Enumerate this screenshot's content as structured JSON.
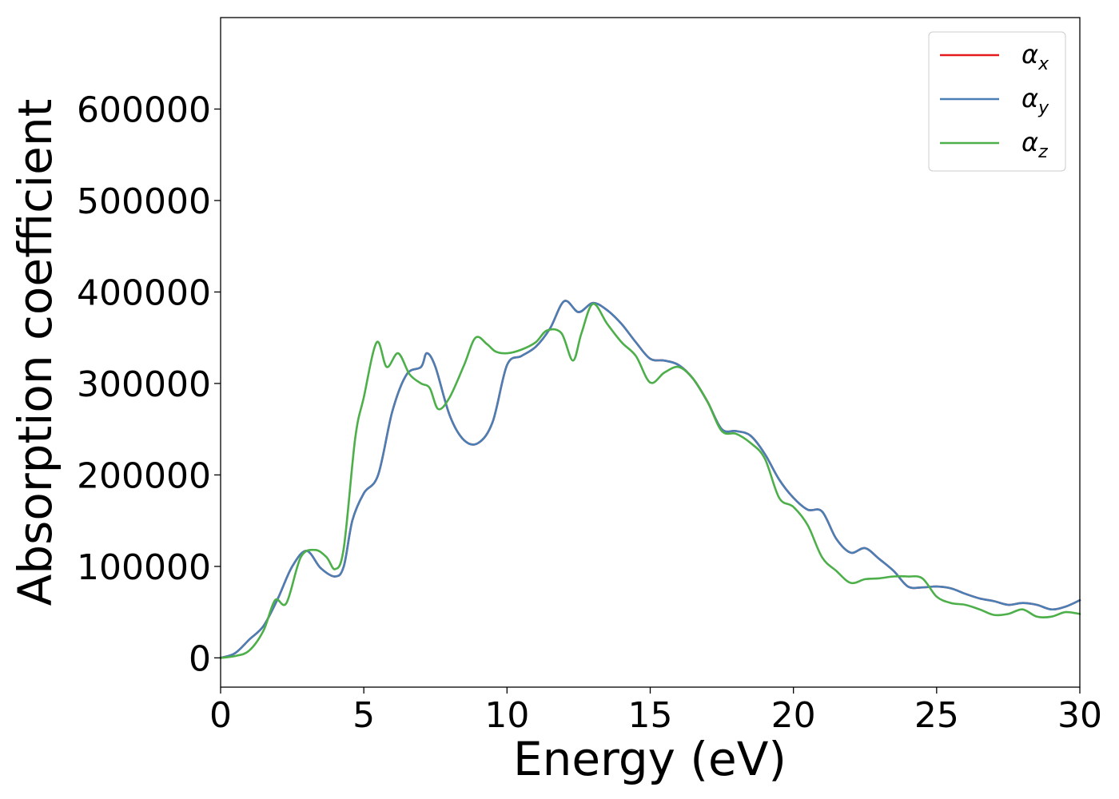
{
  "chart_data": {
    "type": "line",
    "title": "",
    "xlabel": "Energy (eV)",
    "ylabel": "Absorption coefficient",
    "xlim": [
      0,
      30
    ],
    "ylim": [
      -32000,
      700000
    ],
    "xticks": [
      0,
      5,
      10,
      15,
      20,
      25,
      30
    ],
    "yticks": [
      0,
      100000,
      200000,
      300000,
      400000,
      500000,
      600000
    ],
    "xtick_labels": [
      "0",
      "5",
      "10",
      "15",
      "20",
      "25",
      "30"
    ],
    "ytick_labels": [
      "0",
      "100000",
      "200000",
      "300000",
      "400000",
      "500000",
      "600000"
    ],
    "grid": false,
    "legend_position": "top-right",
    "series": [
      {
        "name": "αx",
        "symbol": "α",
        "subscript": "x",
        "color": "#e41a1c",
        "x": [
          0,
          0.5,
          1.0,
          1.5,
          2.0,
          2.5,
          3.0,
          3.5,
          4.0,
          4.3,
          4.6,
          5.0,
          5.5,
          6.0,
          6.5,
          7.0,
          7.2,
          7.5,
          8.0,
          8.5,
          9.0,
          9.5,
          10.0,
          10.5,
          11.0,
          11.5,
          12.0,
          12.5,
          13.0,
          13.5,
          14.0,
          14.5,
          15.0,
          15.5,
          16.0,
          16.5,
          17.0,
          17.5,
          18.0,
          18.5,
          19.0,
          19.5,
          20.0,
          20.5,
          21.0,
          21.5,
          22.0,
          22.5,
          23.0,
          23.5,
          24.0,
          24.5,
          25.0,
          25.5,
          26.0,
          26.5,
          27.0,
          27.5,
          28.0,
          28.5,
          29.0,
          29.5,
          30.0
        ],
        "y": [
          0,
          5000,
          20000,
          35000,
          65000,
          100000,
          117000,
          98000,
          89000,
          100000,
          150000,
          180000,
          200000,
          270000,
          310000,
          318000,
          333000,
          318000,
          265000,
          238000,
          235000,
          258000,
          320000,
          330000,
          340000,
          360000,
          390000,
          378000,
          388000,
          380000,
          365000,
          345000,
          327000,
          325000,
          320000,
          305000,
          280000,
          250000,
          248000,
          243000,
          223000,
          195000,
          175000,
          162000,
          160000,
          130000,
          115000,
          120000,
          108000,
          95000,
          78000,
          77000,
          78000,
          76000,
          70000,
          65000,
          62000,
          58000,
          60000,
          58000,
          53000,
          56000,
          63000
        ]
      },
      {
        "name": "αy",
        "symbol": "α",
        "subscript": "y",
        "color": "#4a7fb5",
        "x": [
          0,
          0.5,
          1.0,
          1.5,
          2.0,
          2.5,
          3.0,
          3.5,
          4.0,
          4.3,
          4.6,
          5.0,
          5.5,
          6.0,
          6.5,
          7.0,
          7.2,
          7.5,
          8.0,
          8.5,
          9.0,
          9.5,
          10.0,
          10.5,
          11.0,
          11.5,
          12.0,
          12.5,
          13.0,
          13.5,
          14.0,
          14.5,
          15.0,
          15.5,
          16.0,
          16.5,
          17.0,
          17.5,
          18.0,
          18.5,
          19.0,
          19.5,
          20.0,
          20.5,
          21.0,
          21.5,
          22.0,
          22.5,
          23.0,
          23.5,
          24.0,
          24.5,
          25.0,
          25.5,
          26.0,
          26.5,
          27.0,
          27.5,
          28.0,
          28.5,
          29.0,
          29.5,
          30.0
        ],
        "y": [
          0,
          5000,
          20000,
          35000,
          65000,
          100000,
          117000,
          98000,
          89000,
          100000,
          150000,
          180000,
          200000,
          270000,
          310000,
          318000,
          333000,
          318000,
          265000,
          238000,
          235000,
          258000,
          320000,
          330000,
          340000,
          360000,
          390000,
          378000,
          388000,
          380000,
          365000,
          345000,
          327000,
          325000,
          320000,
          305000,
          280000,
          250000,
          248000,
          243000,
          223000,
          195000,
          175000,
          162000,
          160000,
          130000,
          115000,
          120000,
          108000,
          95000,
          78000,
          77000,
          78000,
          76000,
          70000,
          65000,
          62000,
          58000,
          60000,
          58000,
          53000,
          56000,
          63000
        ]
      },
      {
        "name": "αz",
        "symbol": "α",
        "subscript": "z",
        "color": "#4daf4a",
        "x": [
          0,
          0.5,
          1.0,
          1.5,
          1.9,
          2.3,
          2.8,
          3.3,
          3.7,
          4.0,
          4.3,
          4.7,
          5.0,
          5.45,
          5.8,
          6.2,
          6.6,
          7.0,
          7.3,
          7.6,
          8.0,
          8.5,
          8.9,
          9.3,
          9.6,
          10.0,
          10.5,
          11.0,
          11.4,
          11.9,
          12.3,
          12.6,
          13.0,
          13.5,
          14.0,
          14.5,
          15.0,
          15.5,
          16.0,
          16.5,
          17.0,
          17.5,
          18.0,
          18.5,
          19.0,
          19.5,
          20.0,
          20.5,
          21.0,
          21.5,
          22.0,
          22.5,
          23.0,
          23.5,
          24.0,
          24.5,
          25.0,
          25.5,
          26.0,
          26.5,
          27.0,
          27.5,
          28.0,
          28.5,
          29.0,
          29.5,
          30.0
        ],
        "y": [
          0,
          2000,
          8000,
          30000,
          63000,
          60000,
          110000,
          118000,
          110000,
          97000,
          120000,
          240000,
          285000,
          345000,
          318000,
          333000,
          310000,
          300000,
          295000,
          272000,
          285000,
          320000,
          350000,
          343000,
          335000,
          333000,
          337000,
          345000,
          358000,
          355000,
          325000,
          355000,
          387000,
          365000,
          345000,
          330000,
          301000,
          312000,
          318000,
          305000,
          280000,
          248000,
          245000,
          235000,
          218000,
          175000,
          165000,
          145000,
          110000,
          95000,
          82000,
          86000,
          87000,
          89000,
          89000,
          87000,
          67000,
          60000,
          58000,
          53000,
          47000,
          48000,
          53000,
          45000,
          45000,
          50000,
          48000
        ]
      }
    ]
  }
}
